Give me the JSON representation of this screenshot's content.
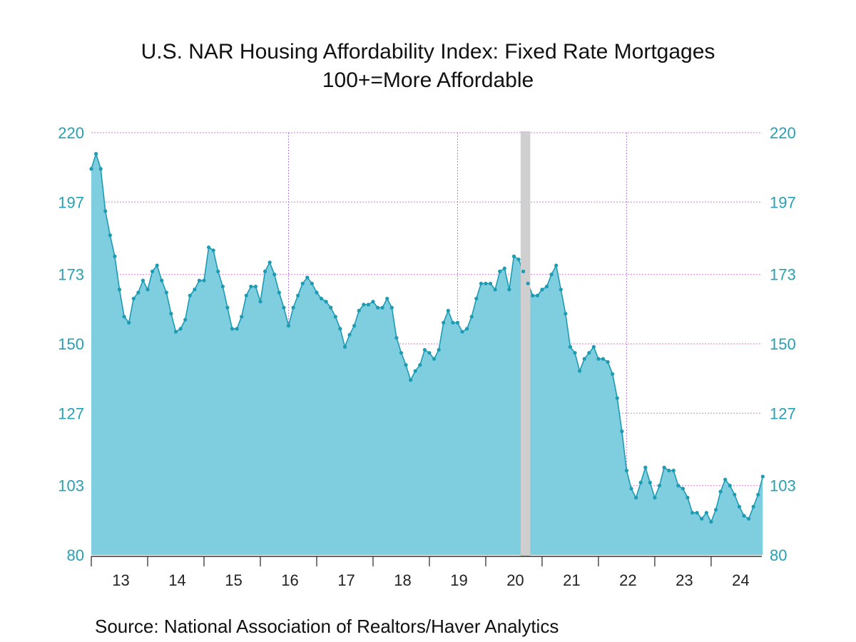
{
  "chart_data": {
    "type": "area",
    "title": "U.S. NAR Housing Affordability Index: Fixed Rate Mortgages",
    "subtitle": "100+=More Affordable",
    "source": "Source:  National Association of Realtors/Haver Analytics",
    "ylim": [
      80,
      220
    ],
    "y_ticks": [
      80,
      103,
      127,
      150,
      173,
      197,
      220
    ],
    "y_tick_labels": [
      "80",
      "103",
      "127",
      "150",
      "173",
      "197",
      "220"
    ],
    "x_range": [
      2012.5,
      2024.4
    ],
    "x_ticks": [
      {
        "label": "13",
        "center": 2013.0
      },
      {
        "label": "14",
        "center": 2014.0
      },
      {
        "label": "15",
        "center": 2015.0
      },
      {
        "label": "16",
        "center": 2016.0
      },
      {
        "label": "17",
        "center": 2017.0
      },
      {
        "label": "18",
        "center": 2018.0
      },
      {
        "label": "19",
        "center": 2019.0
      },
      {
        "label": "20",
        "center": 2020.0
      },
      {
        "label": "21",
        "center": 2021.0
      },
      {
        "label": "22",
        "center": 2022.0
      },
      {
        "label": "23",
        "center": 2023.0
      },
      {
        "label": "24",
        "center": 2024.0
      }
    ],
    "grid": true,
    "recession_band": [
      2020.12,
      2020.29
    ],
    "fill_color": "#7fcee0",
    "line_color": "#1c9bb2",
    "axis_color": "#26a0b5",
    "series": [
      {
        "values": [
          208,
          213,
          208,
          194,
          186,
          179,
          168,
          159,
          157,
          165,
          167,
          171,
          168,
          174,
          176,
          171,
          167,
          160,
          154,
          155,
          158,
          166,
          168,
          171,
          171,
          182,
          181,
          174,
          169,
          162,
          155,
          155,
          159,
          166,
          169,
          169,
          164,
          174,
          177,
          173,
          167,
          162,
          156,
          162,
          166,
          170,
          172,
          170,
          167,
          165,
          164,
          162,
          159,
          155,
          149,
          153,
          156,
          161,
          163,
          163,
          164,
          162,
          162,
          165,
          162,
          152,
          147,
          143,
          138,
          141,
          143,
          148,
          147,
          145,
          148,
          157,
          161,
          157,
          157,
          154,
          155,
          159,
          165,
          170,
          170,
          170,
          168,
          174,
          175,
          168,
          179,
          178,
          174,
          170,
          166,
          166,
          168,
          169,
          173,
          176,
          168,
          160,
          149,
          147,
          141,
          145,
          147,
          149,
          145,
          145,
          144,
          140,
          132,
          121,
          108,
          102,
          99,
          104,
          109,
          104,
          99,
          103,
          109,
          108,
          108,
          103,
          102,
          99,
          94,
          94,
          92,
          94,
          91,
          95,
          101,
          105,
          103,
          100,
          96,
          93,
          92,
          96,
          100,
          106
        ],
        "x_start": 2012.5,
        "x_step": 0.0833333333
      }
    ]
  }
}
